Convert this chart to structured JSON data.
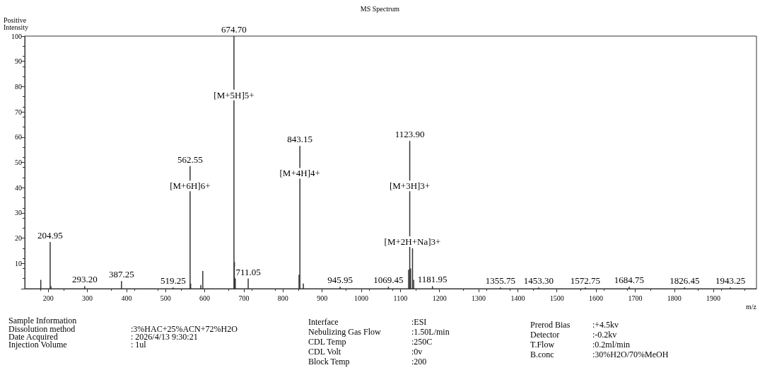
{
  "chart_data": {
    "type": "bar",
    "title": "MS Spectrum",
    "xlabel": "m/z",
    "ylabel": "Positive Intensity",
    "x": [
      181,
      204.95,
      207,
      293.2,
      387.25,
      519.25,
      562.55,
      564,
      590,
      595,
      674.7,
      676,
      678,
      711.05,
      841,
      843.15,
      852,
      945.95,
      1069.45,
      1121,
      1123.9,
      1126,
      1131,
      1134,
      1181.95,
      1355.75,
      1453.3,
      1572.75,
      1684.75,
      1826.45,
      1943.25
    ],
    "values": [
      3.5,
      18.5,
      1,
      1,
      3,
      0.5,
      48.5,
      2,
      1.5,
      7,
      100,
      10.5,
      4,
      4,
      5.5,
      56.5,
      2,
      0.8,
      0.8,
      7.5,
      58.5,
      8,
      16,
      3.5,
      1,
      0.5,
      0.5,
      0.5,
      0.8,
      0.5,
      0.5
    ],
    "color": "#333333",
    "xlim": [
      140,
      2010
    ],
    "xticks": [
      200,
      300,
      400,
      500,
      600,
      700,
      800,
      900,
      1000,
      1100,
      1200,
      1300,
      1400,
      1500,
      1600,
      1700,
      1800,
      1900
    ],
    "ylim": [
      0,
      100
    ],
    "yticks": [
      {
        "value": 0,
        "label": null
      },
      10,
      20,
      30,
      40,
      50,
      60,
      70,
      80,
      90,
      100
    ],
    "grid": false,
    "annotations": [
      {
        "text": "204.95",
        "x": 204.95,
        "y": 18.5
      },
      {
        "text": "293.20",
        "x": 293.2,
        "y": 1
      },
      {
        "text": "387.25",
        "x": 387.25,
        "y": 3
      },
      {
        "text": "519.25",
        "x": 519.25,
        "y": 0.5
      },
      {
        "text": "562.55",
        "x": 562.55,
        "y": 48.5
      },
      {
        "text": "674.70",
        "x": 674.7,
        "y": 100
      },
      {
        "text": "711.05",
        "x": 711.05,
        "y": 4
      },
      {
        "text": "843.15",
        "x": 843.15,
        "y": 56.5
      },
      {
        "text": "945.95",
        "x": 945.95,
        "y": 0.8
      },
      {
        "text": "1069.45",
        "x": 1069.45,
        "y": 0.8
      },
      {
        "text": "1123.90",
        "x": 1123.9,
        "y": 58.5
      },
      {
        "text": "1181.95",
        "x": 1181.95,
        "y": 1
      },
      {
        "text": "1355.75",
        "x": 1355.75,
        "y": 0.5
      },
      {
        "text": "1453.30",
        "x": 1453.3,
        "y": 0.5
      },
      {
        "text": "1572.75",
        "x": 1572.75,
        "y": 0.5
      },
      {
        "text": "1684.75",
        "x": 1684.75,
        "y": 0.8
      },
      {
        "text": "1826.45",
        "x": 1826.45,
        "y": 0.5
      },
      {
        "text": "1943.25",
        "x": 1943.25,
        "y": 0.5
      },
      {
        "text": "[M+6H]6+",
        "x": 562.55,
        "y": 38
      },
      {
        "text": "[M+5H]5+",
        "x": 674.7,
        "y": 74
      },
      {
        "text": "[M+4H]4+",
        "x": 843.15,
        "y": 43
      },
      {
        "text": "[M+3H]3+",
        "x": 1123.9,
        "y": 38
      },
      {
        "text": "[M+2H+Na]3+",
        "x": 1131,
        "y": 16
      },
      "Sample Information",
      "Dissolution method",
      ":3%HAC+25%ACN+72%H2O",
      "Date Acquired",
      ": 2026/4/13 9:30:21",
      "Injection Volume",
      ": 1ul",
      "Interface",
      ":ESI",
      "Nebulizing Gas Flow",
      ":1.50L/min",
      "CDL Temp",
      ":250C",
      "CDL Volt",
      ":0v",
      "Block Temp",
      ":200",
      "Prerod Bias",
      ":+4.5kv",
      "Detector",
      ":-0.2kv",
      "T.Flow",
      ":0.2ml/min",
      "B.conc",
      ":30%H2O/70%MeOH"
    ]
  }
}
